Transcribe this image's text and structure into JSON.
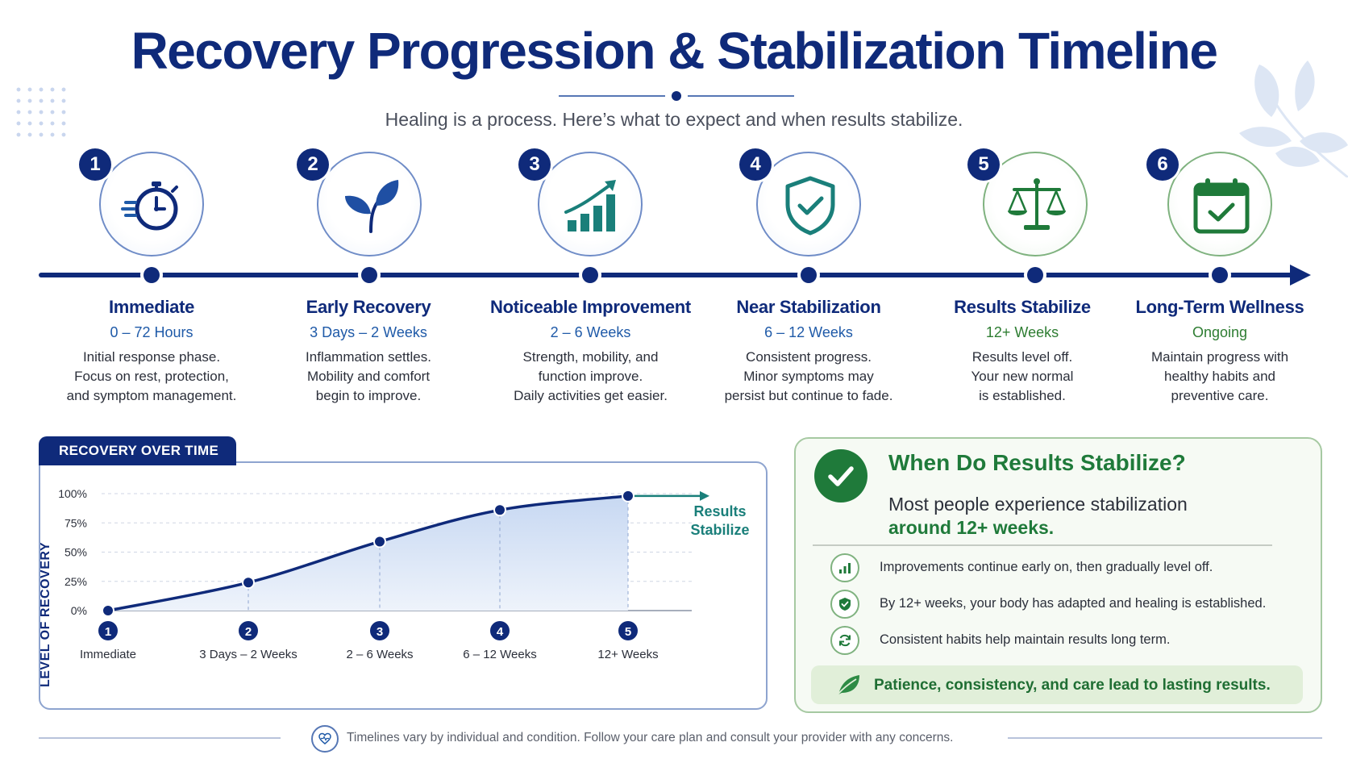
{
  "header": {
    "title": "Recovery Progression & Stabilization Timeline",
    "subtitle": "Healing is a process. Here’s what to expect and when results stabilize."
  },
  "steps": [
    {
      "num": "1",
      "icon": "stopwatch-icon",
      "title": "Immediate",
      "time": "0 – 72 Hours",
      "desc": [
        "Initial response phase.",
        "Focus on rest, protection,",
        "and symptom management."
      ]
    },
    {
      "num": "2",
      "icon": "leaf-icon",
      "title": "Early Recovery",
      "time": "3 Days – 2 Weeks",
      "desc": [
        "Inflammation settles.",
        "Mobility and comfort",
        "begin to improve."
      ]
    },
    {
      "num": "3",
      "icon": "growth-chart-icon",
      "title": "Noticeable Improvement",
      "time": "2 – 6 Weeks",
      "desc": [
        "Strength, mobility, and",
        "function improve.",
        "Daily activities get easier."
      ]
    },
    {
      "num": "4",
      "icon": "shield-check-icon",
      "title": "Near Stabilization",
      "time": "6 – 12 Weeks",
      "desc": [
        "Consistent progress.",
        "Minor symptoms may",
        "persist but continue to fade."
      ]
    },
    {
      "num": "5",
      "icon": "balance-scale-icon",
      "title": "Results Stabilize",
      "time": "12+ Weeks",
      "desc": [
        "Results level off.",
        "Your new normal",
        "is established."
      ]
    },
    {
      "num": "6",
      "icon": "calendar-check-icon",
      "title": "Long-Term Wellness",
      "time": "Ongoing",
      "desc": [
        "Maintain progress with",
        "healthy habits and",
        "preventive care."
      ]
    }
  ],
  "chart_section": {
    "tab_label": "RECOVERY OVER TIME",
    "stabilize_label": [
      "Results",
      "Stabilize"
    ]
  },
  "chart_data": {
    "type": "area",
    "title": "",
    "xlabel": "",
    "ylabel": "LEVEL OF RECOVERY",
    "categories": [
      "Immediate",
      "3 Days – 2 Weeks",
      "2 – 6 Weeks",
      "6 – 12 Weeks",
      "12+ Weeks"
    ],
    "markers": [
      "1",
      "2",
      "3",
      "4",
      "5"
    ],
    "values": [
      0,
      24,
      59,
      86,
      98
    ],
    "ylim": [
      0,
      100
    ],
    "yticks": [
      "0%",
      "25%",
      "50%",
      "75%",
      "100%"
    ],
    "grid": true
  },
  "stabilize": {
    "title": "When Do Results Stabilize?",
    "subtitle": "Most people experience stabilization",
    "highlight": "around 12+ weeks.",
    "items": [
      {
        "icon": "bar-chart-icon",
        "text": "Improvements continue early on, then gradually level off."
      },
      {
        "icon": "shield-check-icon",
        "text": "By 12+ weeks, your body has adapted and healing is established."
      },
      {
        "icon": "refresh-icon",
        "text": "Consistent habits help maintain results long term."
      }
    ],
    "banner": "Patience, consistency, and care lead to lasting results."
  },
  "footer": {
    "text": "Timelines vary by individual and condition. Follow your care plan and consult your provider with any concerns."
  },
  "colors": {
    "navy": "#0f2a7a",
    "blue": "#1f5aa8",
    "teal": "#1a7f7a",
    "green": "#1f7a3a"
  }
}
